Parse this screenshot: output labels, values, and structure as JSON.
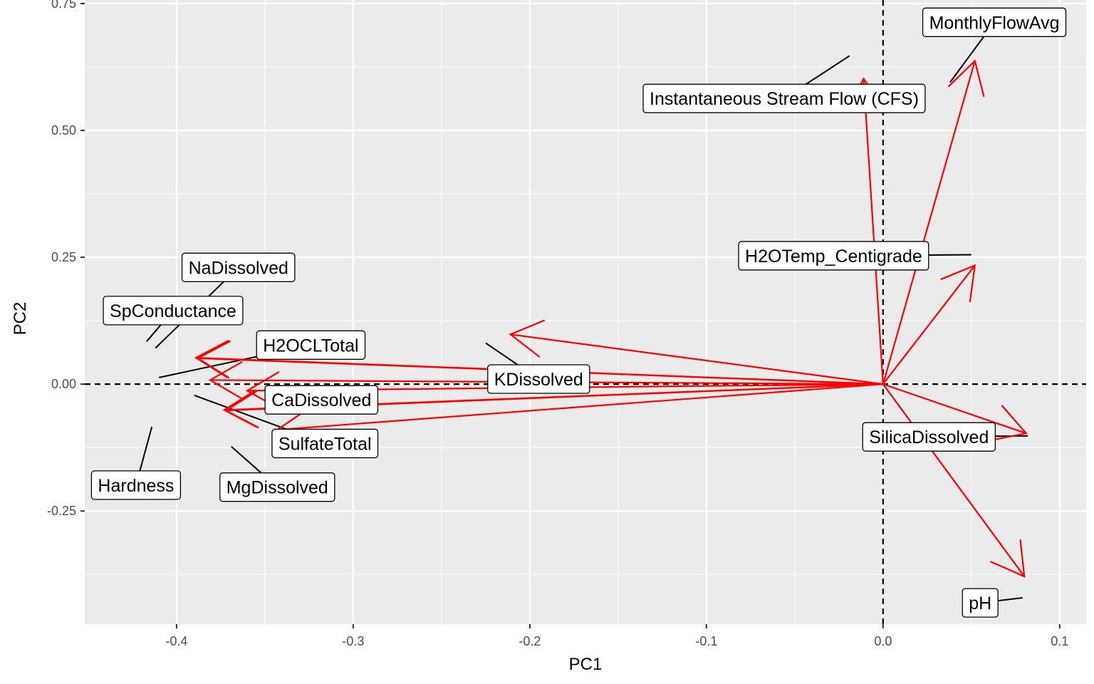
{
  "chart_data": {
    "type": "biplot-arrows",
    "xlabel": "PC1",
    "ylabel": "PC2",
    "xlim": [
      -0.452,
      0.115
    ],
    "ylim": [
      -0.473,
      0.757
    ],
    "xticks": [
      -0.4,
      -0.3,
      -0.2,
      -0.1,
      0.0,
      0.1
    ],
    "xtick_labels": [
      "-0.4",
      "-0.3",
      "-0.2",
      "-0.1",
      "0.0",
      "0.1"
    ],
    "yticks": [
      -0.25,
      0.0,
      0.25,
      0.5,
      0.75
    ],
    "ytick_labels": [
      "-0.25",
      "0.00",
      "0.25",
      "0.50",
      "0.75"
    ],
    "grid": true,
    "reference_lines": {
      "x": 0,
      "y": 0,
      "style": "dashed"
    },
    "arrow_color": "#ff0000",
    "panel_color": "#ebebeb",
    "vectors": [
      {
        "name": "MonthlyFlowAvg",
        "x": 0.052,
        "y": 0.637,
        "label_x": 0.063,
        "label_y": 0.713,
        "anchor_x": 0.038,
        "anchor_y": 0.595
      },
      {
        "name": "Instantaneous Stream Flow (CFS)",
        "x": -0.011,
        "y": 0.602,
        "label_x": -0.056,
        "label_y": 0.563,
        "anchor_x": -0.019,
        "anchor_y": 0.647
      },
      {
        "name": "H2OTemp_Centigrade",
        "x": 0.052,
        "y": 0.234,
        "label_x": -0.028,
        "label_y": 0.253,
        "anchor_x": 0.05,
        "anchor_y": 0.255
      },
      {
        "name": "SilicaDissolved",
        "x": 0.081,
        "y": -0.097,
        "label_x": 0.026,
        "label_y": -0.104,
        "anchor_x": 0.082,
        "anchor_y": -0.102
      },
      {
        "name": "pH",
        "x": 0.08,
        "y": -0.379,
        "label_x": 0.055,
        "label_y": -0.431,
        "anchor_x": 0.079,
        "anchor_y": -0.421
      },
      {
        "name": "KDissolved",
        "x": -0.211,
        "y": 0.098,
        "label_x": -0.195,
        "label_y": 0.01,
        "anchor_x": -0.225,
        "anchor_y": 0.081
      },
      {
        "name": "NaDissolved",
        "x": -0.389,
        "y": 0.052,
        "label_x": -0.365,
        "label_y": 0.23,
        "anchor_x": -0.412,
        "anchor_y": 0.071
      },
      {
        "name": "SpConductance",
        "x": -0.388,
        "y": 0.051,
        "label_x": -0.402,
        "label_y": 0.145,
        "anchor_x": -0.417,
        "anchor_y": 0.084
      },
      {
        "name": "H2OCLTotal",
        "x": -0.381,
        "y": 0.008,
        "label_x": -0.324,
        "label_y": 0.077,
        "anchor_x": -0.41,
        "anchor_y": 0.013
      },
      {
        "name": "CaDissolved",
        "x": -0.36,
        "y": -0.013,
        "label_x": -0.318,
        "label_y": -0.031,
        "anchor_x": -0.35,
        "anchor_y": -0.019
      },
      {
        "name": "SulfateTotal",
        "x": -0.373,
        "y": -0.051,
        "label_x": -0.316,
        "label_y": -0.117,
        "anchor_x": -0.39,
        "anchor_y": -0.022
      },
      {
        "name": "MgDissolved",
        "x": -0.343,
        "y": -0.09,
        "label_x": -0.343,
        "label_y": -0.203,
        "anchor_x": -0.369,
        "anchor_y": -0.123
      },
      {
        "name": "Hardness",
        "x": -0.372,
        "y": -0.052,
        "label_x": -0.423,
        "label_y": -0.199,
        "anchor_x": -0.414,
        "anchor_y": -0.084
      }
    ]
  }
}
